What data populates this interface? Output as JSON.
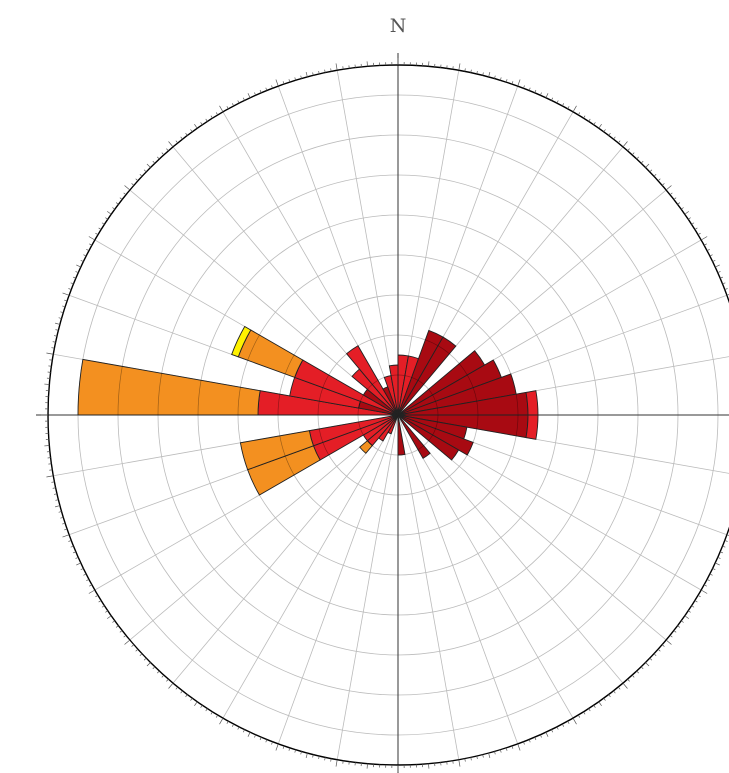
{
  "chart_data": {
    "type": "rose",
    "title": "",
    "north_label": "N",
    "sector_width_deg": 10,
    "rmax": 35,
    "ring_step": 4,
    "colors": {
      "dark_red": "#a80a12",
      "red": "#e41e26",
      "orange": "#f39020",
      "yellow": "#fff200",
      "outline": "#222222",
      "grid": "#bbbbbb",
      "axis": "#333333"
    },
    "sectors": [
      {
        "start": 0,
        "segments": [
          {
            "value": 6,
            "color": "red"
          }
        ]
      },
      {
        "start": 10,
        "segments": [
          {
            "value": 6,
            "color": "red"
          }
        ]
      },
      {
        "start": 20,
        "segments": [
          {
            "value": 9,
            "color": "dark_red"
          }
        ]
      },
      {
        "start": 30,
        "segments": [
          {
            "value": 9,
            "color": "dark_red"
          }
        ]
      },
      {
        "start": 50,
        "segments": [
          {
            "value": 10,
            "color": "dark_red"
          }
        ]
      },
      {
        "start": 60,
        "segments": [
          {
            "value": 11,
            "color": "dark_red"
          }
        ]
      },
      {
        "start": 70,
        "segments": [
          {
            "value": 12,
            "color": "dark_red"
          }
        ]
      },
      {
        "start": 80,
        "segments": [
          {
            "value": 13,
            "color": "dark_red"
          },
          {
            "value": 1,
            "color": "red"
          }
        ]
      },
      {
        "start": 90,
        "segments": [
          {
            "value": 13,
            "color": "dark_red"
          },
          {
            "value": 1,
            "color": "red"
          }
        ]
      },
      {
        "start": 100,
        "segments": [
          {
            "value": 7,
            "color": "dark_red"
          }
        ]
      },
      {
        "start": 110,
        "segments": [
          {
            "value": 8,
            "color": "dark_red"
          }
        ]
      },
      {
        "start": 120,
        "segments": [
          {
            "value": 7,
            "color": "dark_red"
          }
        ]
      },
      {
        "start": 140,
        "segments": [
          {
            "value": 5,
            "color": "dark_red"
          }
        ]
      },
      {
        "start": 170,
        "segments": [
          {
            "value": 4,
            "color": "dark_red"
          }
        ]
      },
      {
        "start": 200,
        "segments": [
          {
            "value": 2,
            "color": "red"
          }
        ]
      },
      {
        "start": 210,
        "segments": [
          {
            "value": 3,
            "color": "red"
          }
        ]
      },
      {
        "start": 220,
        "segments": [
          {
            "value": 4,
            "color": "red"
          },
          {
            "value": 1,
            "color": "orange"
          }
        ]
      },
      {
        "start": 230,
        "segments": [
          {
            "value": 4,
            "color": "red"
          }
        ]
      },
      {
        "start": 240,
        "segments": [
          {
            "value": 9,
            "color": "red"
          },
          {
            "value": 7,
            "color": "orange"
          }
        ]
      },
      {
        "start": 250,
        "segments": [
          {
            "value": 9,
            "color": "red"
          },
          {
            "value": 7,
            "color": "orange"
          }
        ]
      },
      {
        "start": 270,
        "segments": [
          {
            "value": 14,
            "color": "red"
          },
          {
            "value": 18,
            "color": "orange"
          }
        ]
      },
      {
        "start": 280,
        "segments": [
          {
            "value": 4,
            "color": "dark_red"
          },
          {
            "value": 7,
            "color": "red"
          }
        ]
      },
      {
        "start": 290,
        "segments": [
          {
            "value": 11,
            "color": "red"
          },
          {
            "value": 6,
            "color": "orange"
          },
          {
            "value": 0.7,
            "color": "yellow"
          }
        ]
      },
      {
        "start": 300,
        "segments": [
          {
            "value": 4,
            "color": "dark_red"
          }
        ]
      },
      {
        "start": 310,
        "segments": [
          {
            "value": 6,
            "color": "red"
          }
        ]
      },
      {
        "start": 320,
        "segments": [
          {
            "value": 8,
            "color": "red"
          }
        ]
      },
      {
        "start": 330,
        "segments": [
          {
            "value": 3,
            "color": "dark_red"
          }
        ]
      },
      {
        "start": 340,
        "segments": [
          {
            "value": 4,
            "color": "red"
          }
        ]
      },
      {
        "start": 350,
        "segments": [
          {
            "value": 5,
            "color": "red"
          }
        ]
      }
    ]
  }
}
